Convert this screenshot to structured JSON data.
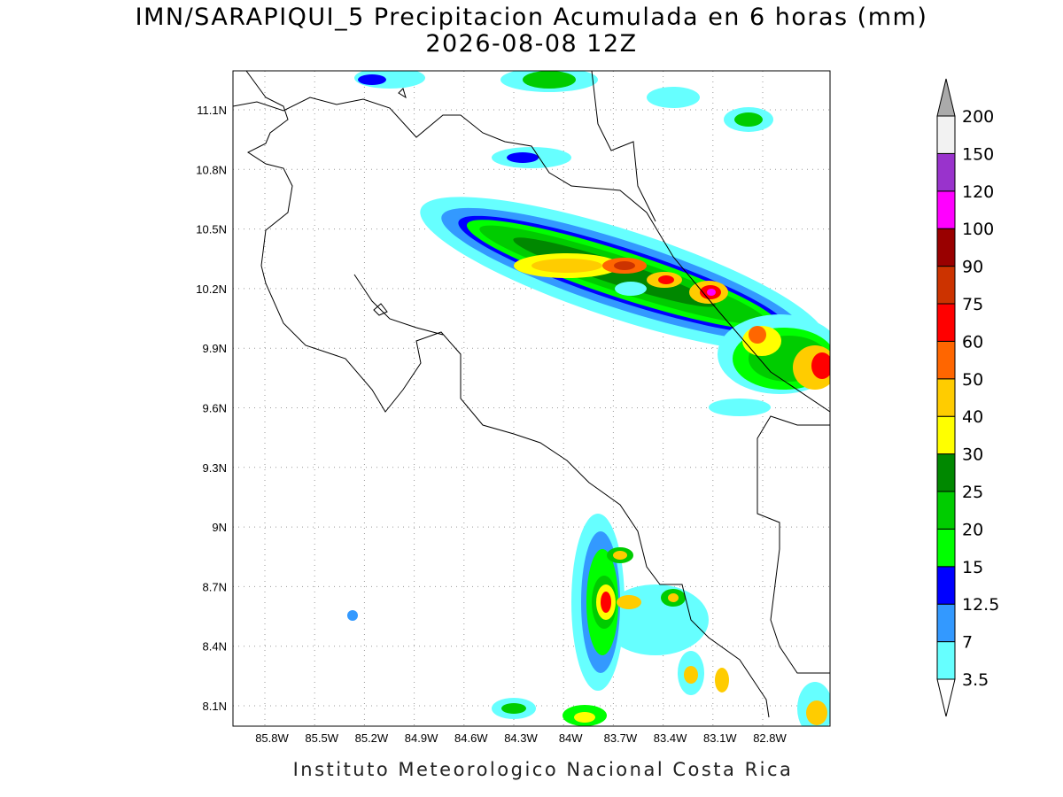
{
  "title": [
    "IMN/SARAPIQUI_5 Precipitacion Acumulada en 6 horas (mm)",
    "2026-08-08 12Z"
  ],
  "map": {
    "lon_labels": [
      "85.8W",
      "85.5W",
      "85.2W",
      "84.9W",
      "84.6W",
      "84.3W",
      "84W",
      "83.7W",
      "83.4W",
      "83.1W",
      "82.8W"
    ],
    "lat_labels": [
      "11.1N",
      "10.8N",
      "10.5N",
      "10.2N",
      "9.9N",
      "9.6N",
      "9.3N",
      "9N",
      "8.7N",
      "8.4N",
      "8.1N"
    ]
  },
  "colorbar": {
    "labels": [
      "3.5",
      "7",
      "12.5",
      "15",
      "20",
      "25",
      "30",
      "40",
      "50",
      "60",
      "75",
      "90",
      "100",
      "120",
      "150",
      "200"
    ],
    "colors": [
      "#66ffff",
      "#3399ff",
      "#0000ff",
      "#00ff00",
      "#00cc00",
      "#008800",
      "#ffff00",
      "#ffcc00",
      "#ff6600",
      "#ff0000",
      "#cc3300",
      "#990000",
      "#ff00ff",
      "#9933cc",
      "#f2f2f2"
    ],
    "below_color": "#ffffff",
    "above_color": "#aaaaaa"
  },
  "footer": "Instituto Meteorologico Nacional Costa Rica"
}
